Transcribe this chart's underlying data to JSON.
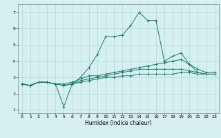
{
  "title": "",
  "xlabel": "Humidex (Indice chaleur)",
  "ylabel": "",
  "bg_color": "#d6f0f0",
  "grid_color": "#b0d8d8",
  "line_color": "#1a7a6e",
  "xlim": [
    -0.5,
    23.5
  ],
  "ylim": [
    0.8,
    7.5
  ],
  "yticks": [
    1,
    2,
    3,
    4,
    5,
    6,
    7
  ],
  "xticks": [
    0,
    1,
    2,
    3,
    4,
    5,
    6,
    7,
    8,
    9,
    10,
    11,
    12,
    13,
    14,
    15,
    16,
    17,
    18,
    19,
    20,
    21,
    22,
    23
  ],
  "series": [
    {
      "x": [
        0,
        1,
        2,
        3,
        4,
        5,
        6,
        7,
        8,
        9,
        10,
        11,
        12,
        13,
        14,
        15,
        16,
        17,
        18,
        19,
        20,
        21,
        22,
        23
      ],
      "y": [
        2.6,
        2.5,
        2.7,
        2.7,
        2.6,
        1.2,
        2.6,
        3.0,
        3.6,
        4.4,
        5.5,
        5.5,
        5.6,
        6.2,
        7.0,
        6.5,
        6.5,
        4.0,
        4.3,
        4.5,
        3.8,
        3.5,
        3.3,
        3.3
      ]
    },
    {
      "x": [
        0,
        1,
        2,
        3,
        4,
        5,
        6,
        7,
        8,
        9,
        10,
        11,
        12,
        13,
        14,
        15,
        16,
        17,
        18,
        19,
        20,
        21,
        22,
        23
      ],
      "y": [
        2.6,
        2.5,
        2.7,
        2.7,
        2.6,
        2.6,
        2.7,
        2.9,
        3.1,
        3.1,
        3.2,
        3.3,
        3.4,
        3.5,
        3.6,
        3.7,
        3.8,
        3.9,
        4.0,
        4.1,
        3.8,
        3.3,
        3.2,
        3.2
      ]
    },
    {
      "x": [
        0,
        1,
        2,
        3,
        4,
        5,
        6,
        7,
        8,
        9,
        10,
        11,
        12,
        13,
        14,
        15,
        16,
        17,
        18,
        19,
        20,
        21,
        22,
        23
      ],
      "y": [
        2.6,
        2.5,
        2.7,
        2.7,
        2.6,
        2.5,
        2.6,
        2.8,
        2.9,
        3.0,
        3.1,
        3.2,
        3.3,
        3.4,
        3.5,
        3.5,
        3.5,
        3.5,
        3.5,
        3.5,
        3.4,
        3.3,
        3.2,
        3.2
      ]
    },
    {
      "x": [
        0,
        1,
        2,
        3,
        4,
        5,
        6,
        7,
        8,
        9,
        10,
        11,
        12,
        13,
        14,
        15,
        16,
        17,
        18,
        19,
        20,
        21,
        22,
        23
      ],
      "y": [
        2.6,
        2.5,
        2.7,
        2.7,
        2.6,
        2.5,
        2.6,
        2.7,
        2.8,
        2.9,
        3.0,
        3.0,
        3.1,
        3.1,
        3.2,
        3.2,
        3.2,
        3.2,
        3.2,
        3.3,
        3.3,
        3.2,
        3.2,
        3.2
      ]
    }
  ]
}
